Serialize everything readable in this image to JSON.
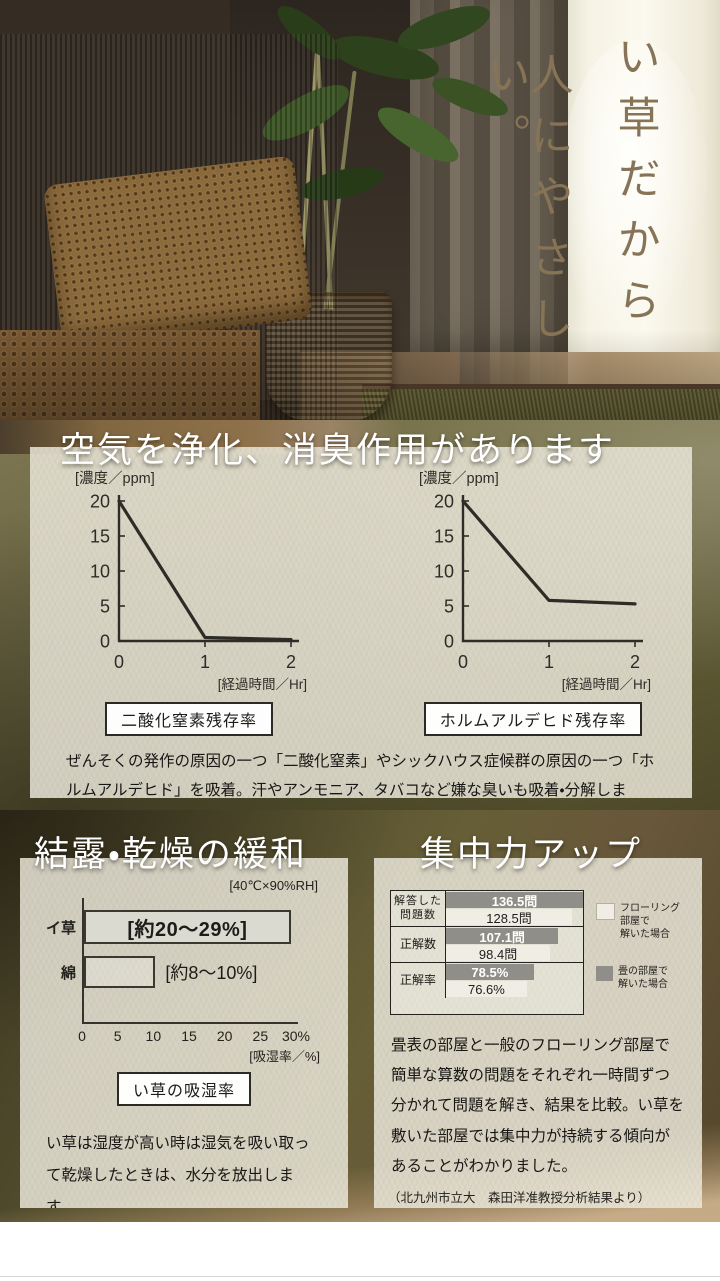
{
  "hero": {
    "catchphrase": {
      "line1": "い草だから",
      "line2": "人にやさしい。"
    }
  },
  "air": {
    "heading": "空気を浄化、消臭作用があります",
    "body": "ぜんそくの発作の原因の一つ「二酸化窒素」やシックハウス症候群の原因の一つ「ホルムアルデヒド」を吸着。汗やアンモニア、タバコなど嫌な臭いも吸着・分解します。"
  },
  "humidity": {
    "heading": "結露・乾燥の緩和",
    "body": "い草は湿度が高い時は湿気を吸い取って乾燥したときは、水分を放出します。"
  },
  "focus": {
    "heading": "集中力アップ",
    "body": "畳表の部屋と一般のフローリング部屋で簡単な算数の問題をそれぞれ一時間ずつ分かれて問題を解き、結果を比較。い草を敷いた部屋では集中力が持続する傾向があることがわかりました。",
    "source": "（北九州市立大　森田洋准教授分析結果より）"
  },
  "colors": {
    "catchphrase_text": "#877457",
    "heading_text": "#ffffff",
    "panel_bg": "#ece9dc",
    "ink": "#2e2c27",
    "bar_dark": "#8f8e88",
    "bar_light": "#efede4"
  },
  "chart_data": [
    {
      "type": "line",
      "title": "二酸化窒素残存率",
      "ylabel": "[濃度／ppm]",
      "xlabel": "[経過時間／Hr]",
      "x": [
        0,
        1,
        2
      ],
      "y": [
        20,
        0.5,
        0.2
      ],
      "xlim": [
        0,
        2
      ],
      "ylim": [
        0,
        20
      ],
      "xticks": [
        0,
        1,
        2
      ],
      "yticks": [
        0,
        5,
        10,
        15,
        20
      ],
      "grid": false,
      "line_color": "#2e2c27"
    },
    {
      "type": "line",
      "title": "ホルムアルデヒド残存率",
      "ylabel": "[濃度／ppm]",
      "xlabel": "[経過時間／Hr]",
      "x": [
        0,
        1,
        2
      ],
      "y": [
        20,
        5.8,
        5.3
      ],
      "xlim": [
        0,
        2
      ],
      "ylim": [
        0,
        20
      ],
      "xticks": [
        0,
        1,
        2
      ],
      "yticks": [
        0,
        5,
        10,
        15,
        20
      ],
      "grid": false,
      "line_color": "#2e2c27"
    },
    {
      "type": "bar",
      "orientation": "horizontal",
      "title": "い草の吸湿率",
      "condition_note": "[40℃×90%RH]",
      "xlabel": "[吸湿率／%]",
      "categories": [
        "イ草",
        "綿"
      ],
      "values": [
        29,
        10
      ],
      "value_labels": [
        "[約20〜29%]",
        "[約8〜10%]"
      ],
      "xlim": [
        0,
        30
      ],
      "xticks": [
        "0",
        "5",
        "10",
        "15",
        "20",
        "25",
        "30%"
      ]
    },
    {
      "type": "bar",
      "orientation": "horizontal",
      "categories": [
        "解答した問題数",
        "正解数",
        "正解率"
      ],
      "categories_display": [
        [
          "解答した",
          "問題数"
        ],
        [
          "正解数"
        ],
        [
          "正解率"
        ]
      ],
      "series": [
        {
          "name": "畳の部屋で解いた場合",
          "values": [
            136.5,
            107.1,
            78.5
          ],
          "value_labels": [
            "136.5問",
            "107.1問",
            "78.5%"
          ],
          "widths_pct": [
            100,
            82,
            64
          ],
          "color": "#8f8e88"
        },
        {
          "name": "フローリング部屋で解いた場合",
          "values": [
            128.5,
            98.4,
            76.6
          ],
          "value_labels": [
            "128.5問",
            "98.4問",
            "76.6%"
          ],
          "widths_pct": [
            92,
            76,
            59
          ],
          "color": "#efede4"
        }
      ],
      "legend": [
        {
          "lines": [
            "フローリング",
            "部屋で",
            "解いた場合"
          ],
          "swatch": "#efede4"
        },
        {
          "lines": [
            "畳の部屋で",
            "解いた場合"
          ],
          "swatch": "#8f8e88"
        }
      ],
      "legend_position": "right"
    }
  ]
}
